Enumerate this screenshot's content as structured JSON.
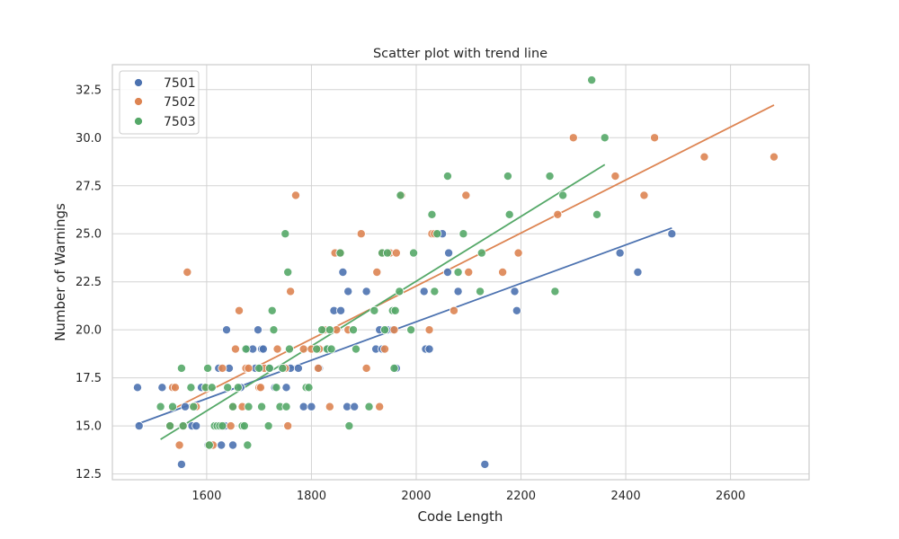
{
  "chart_data": {
    "type": "scatter",
    "title": "Scatter plot with trend line",
    "xlabel": "Code Length",
    "ylabel": "Number of Warnings",
    "xlim": [
      1420,
      2750
    ],
    "ylim": [
      12.2,
      33.8
    ],
    "xticks": [
      1600,
      1800,
      2000,
      2200,
      2400,
      2600
    ],
    "yticks": [
      12.5,
      15.0,
      17.5,
      20.0,
      22.5,
      25.0,
      27.5,
      30.0,
      32.5
    ],
    "ytick_labels": [
      "12.5",
      "15.0",
      "17.5",
      "20.0",
      "22.5",
      "25.0",
      "27.5",
      "30.0",
      "32.5"
    ],
    "grid": true,
    "legend_position": "top-left",
    "series": [
      {
        "name": "7501",
        "color": "#4c72b0",
        "points": [
          [
            1468,
            17
          ],
          [
            1471,
            15
          ],
          [
            1515,
            17
          ],
          [
            1530,
            15
          ],
          [
            1537,
            17
          ],
          [
            1552,
            13
          ],
          [
            1559,
            16
          ],
          [
            1572,
            15
          ],
          [
            1580,
            15
          ],
          [
            1590,
            17
          ],
          [
            1603,
            14
          ],
          [
            1618,
            15
          ],
          [
            1623,
            18
          ],
          [
            1628,
            14
          ],
          [
            1635,
            15
          ],
          [
            1638,
            20
          ],
          [
            1643,
            18
          ],
          [
            1650,
            14
          ],
          [
            1665,
            17
          ],
          [
            1678,
            19
          ],
          [
            1688,
            19
          ],
          [
            1693,
            18
          ],
          [
            1698,
            20
          ],
          [
            1703,
            18
          ],
          [
            1705,
            19
          ],
          [
            1708,
            19
          ],
          [
            1720,
            18
          ],
          [
            1730,
            17
          ],
          [
            1745,
            18
          ],
          [
            1752,
            17
          ],
          [
            1760,
            18
          ],
          [
            1775,
            18
          ],
          [
            1785,
            16
          ],
          [
            1800,
            16
          ],
          [
            1815,
            18
          ],
          [
            1823,
            20
          ],
          [
            1832,
            19
          ],
          [
            1843,
            21
          ],
          [
            1856,
            21
          ],
          [
            1860,
            23
          ],
          [
            1868,
            16
          ],
          [
            1870,
            22
          ],
          [
            1882,
            16
          ],
          [
            1905,
            22
          ],
          [
            1923,
            19
          ],
          [
            1930,
            20
          ],
          [
            1935,
            19
          ],
          [
            1945,
            20
          ],
          [
            1955,
            20
          ],
          [
            1962,
            18
          ],
          [
            2015,
            22
          ],
          [
            2018,
            19
          ],
          [
            2025,
            19
          ],
          [
            2050,
            25
          ],
          [
            2060,
            23
          ],
          [
            2062,
            24
          ],
          [
            2080,
            22
          ],
          [
            2131,
            13
          ],
          [
            2188,
            22
          ],
          [
            2192,
            21
          ],
          [
            2389,
            24
          ],
          [
            2423,
            23
          ],
          [
            2488,
            25
          ]
        ],
        "trend": [
          [
            1468,
            15.1
          ],
          [
            2488,
            25.3
          ]
        ]
      },
      {
        "name": "7502",
        "color": "#dd8452",
        "points": [
          [
            1530,
            15
          ],
          [
            1535,
            17
          ],
          [
            1540,
            17
          ],
          [
            1548,
            14
          ],
          [
            1556,
            15
          ],
          [
            1563,
            23
          ],
          [
            1575,
            16
          ],
          [
            1580,
            16
          ],
          [
            1600,
            17
          ],
          [
            1605,
            14
          ],
          [
            1612,
            14
          ],
          [
            1630,
            18
          ],
          [
            1646,
            15
          ],
          [
            1650,
            16
          ],
          [
            1655,
            19
          ],
          [
            1662,
            21
          ],
          [
            1668,
            16
          ],
          [
            1675,
            18
          ],
          [
            1680,
            18
          ],
          [
            1700,
            17
          ],
          [
            1703,
            17
          ],
          [
            1710,
            18
          ],
          [
            1735,
            19
          ],
          [
            1750,
            18
          ],
          [
            1755,
            15
          ],
          [
            1760,
            22
          ],
          [
            1770,
            27
          ],
          [
            1785,
            19
          ],
          [
            1800,
            19
          ],
          [
            1813,
            18
          ],
          [
            1815,
            19
          ],
          [
            1825,
            20
          ],
          [
            1835,
            16
          ],
          [
            1845,
            24
          ],
          [
            1848,
            20
          ],
          [
            1855,
            24
          ],
          [
            1870,
            20
          ],
          [
            1895,
            25
          ],
          [
            1905,
            18
          ],
          [
            1925,
            23
          ],
          [
            1930,
            16
          ],
          [
            1935,
            24
          ],
          [
            1940,
            19
          ],
          [
            1950,
            24
          ],
          [
            1958,
            20
          ],
          [
            1962,
            24
          ],
          [
            1972,
            27
          ],
          [
            2025,
            20
          ],
          [
            2030,
            25
          ],
          [
            2035,
            25
          ],
          [
            2072,
            21
          ],
          [
            2095,
            27
          ],
          [
            2100,
            23
          ],
          [
            2165,
            23
          ],
          [
            2195,
            24
          ],
          [
            2270,
            26
          ],
          [
            2300,
            30
          ],
          [
            2380,
            28
          ],
          [
            2435,
            27
          ],
          [
            2455,
            30
          ],
          [
            2550,
            29
          ],
          [
            2683,
            29
          ]
        ],
        "trend": [
          [
            1530,
            15.8
          ],
          [
            2683,
            31.7
          ]
        ]
      },
      {
        "name": "7503",
        "color": "#55a868",
        "points": [
          [
            1512,
            16
          ],
          [
            1530,
            15
          ],
          [
            1535,
            16
          ],
          [
            1552,
            18
          ],
          [
            1555,
            15
          ],
          [
            1570,
            17
          ],
          [
            1575,
            16
          ],
          [
            1598,
            17
          ],
          [
            1602,
            18
          ],
          [
            1605,
            14
          ],
          [
            1610,
            17
          ],
          [
            1615,
            15
          ],
          [
            1620,
            15
          ],
          [
            1625,
            15
          ],
          [
            1630,
            15
          ],
          [
            1640,
            17
          ],
          [
            1650,
            16
          ],
          [
            1660,
            17
          ],
          [
            1668,
            15
          ],
          [
            1672,
            15
          ],
          [
            1675,
            19
          ],
          [
            1678,
            14
          ],
          [
            1680,
            16
          ],
          [
            1700,
            18
          ],
          [
            1705,
            16
          ],
          [
            1718,
            15
          ],
          [
            1720,
            18
          ],
          [
            1725,
            21
          ],
          [
            1728,
            20
          ],
          [
            1733,
            17
          ],
          [
            1740,
            16
          ],
          [
            1745,
            18
          ],
          [
            1750,
            25
          ],
          [
            1752,
            16
          ],
          [
            1755,
            23
          ],
          [
            1758,
            19
          ],
          [
            1790,
            17
          ],
          [
            1795,
            17
          ],
          [
            1810,
            19
          ],
          [
            1820,
            20
          ],
          [
            1830,
            19
          ],
          [
            1835,
            20
          ],
          [
            1838,
            19
          ],
          [
            1855,
            24
          ],
          [
            1872,
            15
          ],
          [
            1880,
            20
          ],
          [
            1885,
            19
          ],
          [
            1910,
            16
          ],
          [
            1920,
            21
          ],
          [
            1935,
            24
          ],
          [
            1940,
            20
          ],
          [
            1945,
            24
          ],
          [
            1955,
            21
          ],
          [
            1958,
            18
          ],
          [
            1960,
            21
          ],
          [
            1968,
            22
          ],
          [
            1970,
            27
          ],
          [
            1990,
            20
          ],
          [
            1995,
            24
          ],
          [
            2030,
            26
          ],
          [
            2035,
            22
          ],
          [
            2040,
            25
          ],
          [
            2060,
            28
          ],
          [
            2080,
            23
          ],
          [
            2090,
            25
          ],
          [
            2122,
            22
          ],
          [
            2125,
            24
          ],
          [
            2175,
            28
          ],
          [
            2178,
            26
          ],
          [
            2255,
            28
          ],
          [
            2265,
            22
          ],
          [
            2280,
            27
          ],
          [
            2335,
            33
          ],
          [
            2345,
            26
          ],
          [
            2360,
            30
          ]
        ],
        "trend": [
          [
            1512,
            14.3
          ],
          [
            2360,
            28.6
          ]
        ]
      }
    ]
  }
}
